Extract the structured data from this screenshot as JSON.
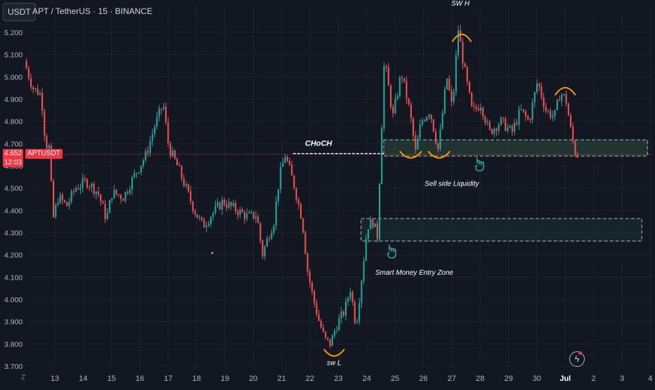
{
  "header": {
    "currency_button": "USDT",
    "symbol_title": "APT / TetherUS · 15 · BINANCE"
  },
  "price_tag": {
    "price": "4.652",
    "countdown": "12:03",
    "symbol": "APTUSDT"
  },
  "footer": {
    "timezone_icon": "Z"
  },
  "colors": {
    "background": "#131722",
    "grid": "#1e2230",
    "up_candle": "#26a69a",
    "down_candle": "#ef5350",
    "orange": "#ff9800",
    "zone_border": "#b2b5be",
    "annotation_text": "#ffffff"
  },
  "icons": {
    "pointer": "pointing-hand-icon",
    "replay": "lightning-icon"
  },
  "chart_data": {
    "type": "candlestick",
    "x_axis": {
      "ticks": [
        {
          "day": 13,
          "label": "13"
        },
        {
          "day": 14,
          "label": "14"
        },
        {
          "day": 15,
          "label": "15"
        },
        {
          "day": 16,
          "label": "16"
        },
        {
          "day": 17,
          "label": "17"
        },
        {
          "day": 18,
          "label": "18"
        },
        {
          "day": 19,
          "label": "19"
        },
        {
          "day": 20,
          "label": "20"
        },
        {
          "day": 21,
          "label": "21"
        },
        {
          "day": 22,
          "label": "22"
        },
        {
          "day": 23,
          "label": "23"
        },
        {
          "day": 24,
          "label": "24"
        },
        {
          "day": 25,
          "label": "25"
        },
        {
          "day": 26,
          "label": "26"
        },
        {
          "day": 27,
          "label": "27"
        },
        {
          "day": 28,
          "label": "28"
        },
        {
          "day": 29,
          "label": "29"
        },
        {
          "day": 30,
          "label": "30"
        },
        {
          "day": 31,
          "label": "Jul"
        },
        {
          "day": 32,
          "label": "2"
        },
        {
          "day": 33,
          "label": "3"
        },
        {
          "day": 34,
          "label": "4"
        }
      ]
    },
    "y_axis": {
      "range": [
        3.7,
        5.2
      ],
      "ticks": [
        "5.200",
        "5.100",
        "5.000",
        "4.900",
        "4.800",
        "4.700",
        "4.600",
        "4.500",
        "4.400",
        "4.300",
        "4.200",
        "4.100",
        "4.000",
        "3.900",
        "3.800",
        "3.700"
      ]
    },
    "current_price": 4.652,
    "path": [
      [
        12,
        5.07
      ],
      [
        12.3,
        4.95
      ],
      [
        12.6,
        4.92
      ],
      [
        12.75,
        4.7
      ],
      [
        12.9,
        4.68
      ],
      [
        13.0,
        4.35
      ],
      [
        13.2,
        4.46
      ],
      [
        13.5,
        4.42
      ],
      [
        13.8,
        4.5
      ],
      [
        14.2,
        4.53
      ],
      [
        14.6,
        4.48
      ],
      [
        14.9,
        4.36
      ],
      [
        15.1,
        4.48
      ],
      [
        15.5,
        4.46
      ],
      [
        15.9,
        4.56
      ],
      [
        16.3,
        4.65
      ],
      [
        16.6,
        4.78
      ],
      [
        16.9,
        4.88
      ],
      [
        17.1,
        4.68
      ],
      [
        17.4,
        4.6
      ],
      [
        17.7,
        4.5
      ],
      [
        18.0,
        4.4
      ],
      [
        18.3,
        4.33
      ],
      [
        18.6,
        4.38
      ],
      [
        19.0,
        4.44
      ],
      [
        19.5,
        4.4
      ],
      [
        19.9,
        4.37
      ],
      [
        20.2,
        4.38
      ],
      [
        20.4,
        4.2
      ],
      [
        20.6,
        4.28
      ],
      [
        20.8,
        4.35
      ],
      [
        21.0,
        4.55
      ],
      [
        21.2,
        4.65
      ],
      [
        21.5,
        4.52
      ],
      [
        21.8,
        4.36
      ],
      [
        22.0,
        4.12
      ],
      [
        22.2,
        4.0
      ],
      [
        22.4,
        3.9
      ],
      [
        22.6,
        3.82
      ],
      [
        22.8,
        3.8
      ],
      [
        23.0,
        3.88
      ],
      [
        23.3,
        3.95
      ],
      [
        23.5,
        4.05
      ],
      [
        23.7,
        3.88
      ],
      [
        23.9,
        4.1
      ],
      [
        24.1,
        4.33
      ],
      [
        24.3,
        4.35
      ],
      [
        24.45,
        4.28
      ],
      [
        24.55,
        4.6
      ],
      [
        24.7,
        5.08
      ],
      [
        25.0,
        4.82
      ],
      [
        25.3,
        5.02
      ],
      [
        25.6,
        4.84
      ],
      [
        25.8,
        4.66
      ],
      [
        26.0,
        4.8
      ],
      [
        26.3,
        4.85
      ],
      [
        26.6,
        4.67
      ],
      [
        26.9,
        5.0
      ],
      [
        27.1,
        4.85
      ],
      [
        27.3,
        5.22
      ],
      [
        27.5,
        5.05
      ],
      [
        27.8,
        4.84
      ],
      [
        28.1,
        4.88
      ],
      [
        28.4,
        4.75
      ],
      [
        28.8,
        4.8
      ],
      [
        29.2,
        4.75
      ],
      [
        29.5,
        4.85
      ],
      [
        29.8,
        4.8
      ],
      [
        30.1,
        4.98
      ],
      [
        30.4,
        4.85
      ],
      [
        30.7,
        4.82
      ],
      [
        30.9,
        4.93
      ],
      [
        31.1,
        4.9
      ],
      [
        31.3,
        4.74
      ],
      [
        31.45,
        4.65
      ]
    ],
    "zones": [
      {
        "x0": 24.6,
        "x1": 33.9,
        "y0": 4.644,
        "y1": 4.717,
        "fill": "#2a4a3e"
      },
      {
        "x0": 23.8,
        "x1": 33.7,
        "y0": 4.262,
        "y1": 4.363,
        "fill": "#16332f"
      }
    ],
    "annotations": [
      {
        "id": "choch",
        "text": "CHoCH",
        "x": 22.3,
        "y": 4.69,
        "line": {
          "x0": 21.4,
          "x1": 24.6,
          "y": 4.655
        }
      },
      {
        "id": "sw-high",
        "text": "SW H",
        "x": 27.3,
        "y": 5.25
      },
      {
        "id": "sw-low",
        "text": "sw L",
        "x": 22.85,
        "y": 3.705
      },
      {
        "id": "sell-side",
        "text": "Sell side Liquidity",
        "x": 27.0,
        "y": 4.51
      },
      {
        "id": "smart-money",
        "text": "Smart Money Entry Zone",
        "x": 24.3,
        "y": 4.11
      }
    ]
  }
}
